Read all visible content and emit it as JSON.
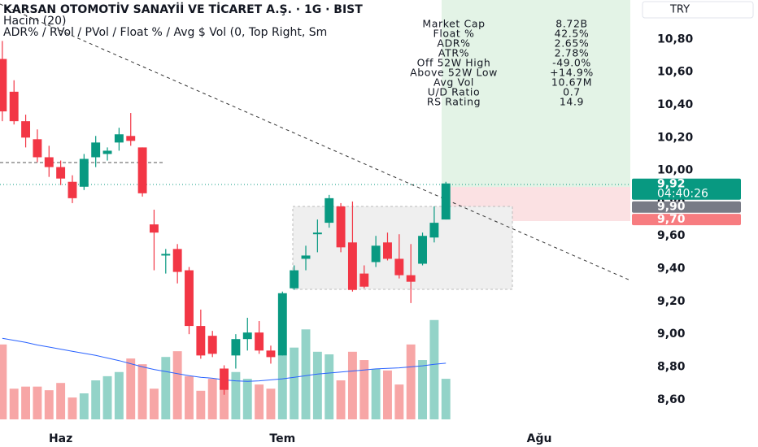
{
  "chart_data": {
    "type": "candlestick",
    "title": "KARSAN OTOMOTİV SANAYİİ VE TİCARET A.Ş. · 1G · BIST",
    "subtitle": "Hacim (20)",
    "indicator_label": "ADR% / RVol / PVol / Float % / Avg $ Vol (0, Top Right, Sm",
    "currency": "TRY",
    "up_color": "#089981",
    "down_color": "#f23645",
    "volume_up_color": "#93d3c8",
    "volume_down_color": "#f7a6a6",
    "volume_ma_color": "#2962ff",
    "x": [
      0,
      1,
      2,
      3,
      4,
      5,
      6,
      7,
      8,
      9,
      10,
      11,
      12,
      13,
      14,
      15,
      16,
      17,
      18,
      19,
      20,
      21,
      22,
      23,
      24,
      25,
      26,
      27,
      28,
      29,
      30,
      31,
      32,
      33,
      34,
      35,
      36,
      37,
      38
    ],
    "open": [
      10.68,
      10.48,
      10.3,
      10.19,
      10.08,
      10.02,
      9.93,
      9.9,
      10.08,
      10.1,
      10.17,
      10.21,
      10.14,
      9.67,
      9.48,
      9.52,
      9.39,
      9.05,
      8.99,
      8.79,
      8.87,
      8.97,
      9.01,
      8.9,
      8.87,
      9.28,
      9.46,
      9.61,
      9.68,
      9.78,
      9.56,
      9.37,
      9.44,
      9.56,
      9.46,
      9.36,
      9.43,
      9.59,
      9.7
    ],
    "high": [
      10.79,
      10.55,
      10.34,
      10.25,
      10.15,
      10.06,
      9.97,
      10.1,
      10.21,
      10.14,
      10.26,
      10.35,
      10.14,
      9.76,
      9.52,
      9.55,
      9.41,
      9.15,
      9.02,
      8.81,
      9.0,
      9.1,
      9.08,
      8.93,
      9.26,
      9.42,
      9.54,
      9.7,
      9.85,
      9.8,
      9.81,
      9.42,
      9.6,
      9.62,
      9.61,
      9.55,
      9.62,
      9.78,
      9.93
    ],
    "low": [
      10.3,
      10.28,
      10.14,
      10.05,
      9.96,
      9.91,
      9.8,
      9.88,
      10.02,
      10.06,
      10.12,
      10.15,
      9.84,
      9.39,
      9.37,
      9.31,
      9.0,
      8.85,
      8.86,
      8.63,
      8.79,
      8.9,
      8.88,
      8.82,
      8.87,
      9.27,
      9.39,
      9.5,
      9.65,
      9.5,
      9.26,
      9.28,
      9.41,
      9.45,
      9.34,
      9.19,
      9.42,
      9.56,
      9.7
    ],
    "close": [
      10.36,
      10.3,
      10.2,
      10.08,
      10.02,
      9.95,
      9.83,
      10.07,
      10.17,
      10.12,
      10.22,
      10.18,
      9.86,
      9.62,
      9.49,
      9.38,
      9.05,
      8.87,
      8.88,
      8.66,
      8.97,
      9.01,
      8.9,
      8.86,
      9.25,
      9.39,
      9.48,
      9.62,
      9.83,
      9.53,
      9.27,
      9.29,
      9.54,
      9.46,
      9.36,
      9.32,
      9.6,
      9.68,
      9.92
    ],
    "volume": [
      14.4,
      5.9,
      6.3,
      6.3,
      5.6,
      7.0,
      4.2,
      5.0,
      7.5,
      8.3,
      9.1,
      11.7,
      10.6,
      5.9,
      12.0,
      13.1,
      8.3,
      5.5,
      7.8,
      6.3,
      9.1,
      7.8,
      6.7,
      5.9,
      12.3,
      13.8,
      17.3,
      13.0,
      12.5,
      7.5,
      13.0,
      11.4,
      9.7,
      9.4,
      6.7,
      14.4,
      11.4,
      19.1,
      7.8
    ],
    "volume_ma": [
      15.6,
      15.2,
      14.8,
      14.3,
      13.9,
      13.5,
      13.1,
      12.7,
      12.3,
      11.8,
      11.3,
      10.7,
      10.1,
      9.6,
      9.2,
      8.8,
      8.4,
      8.1,
      7.9,
      7.6,
      7.4,
      7.3,
      7.4,
      7.6,
      7.8,
      8.1,
      8.4,
      8.7,
      8.9,
      9.1,
      9.3,
      9.5,
      9.7,
      9.8,
      9.9,
      10.1,
      10.3,
      10.6,
      10.8
    ],
    "xlim": [
      -0.2,
      53.8
    ],
    "xticks": [
      {
        "value": 5,
        "label": "Haz"
      },
      {
        "value": 24,
        "label": "Tem"
      },
      {
        "value": 46,
        "label": "Ağu"
      }
    ],
    "ylim": [
      8.46,
      11.04
    ],
    "yticks": [
      {
        "value": 8.6,
        "label": "8,60"
      },
      {
        "value": 8.8,
        "label": "8,80"
      },
      {
        "value": 9.0,
        "label": "9,00"
      },
      {
        "value": 9.2,
        "label": "9,20"
      },
      {
        "value": 9.4,
        "label": "9,40"
      },
      {
        "value": 9.6,
        "label": "9,60"
      },
      {
        "value": 9.8,
        "label": "9,80"
      },
      {
        "value": 10.0,
        "label": "10,00"
      },
      {
        "value": 10.2,
        "label": "10,20"
      },
      {
        "value": 10.4,
        "label": "10,40"
      },
      {
        "value": 10.6,
        "label": "10,60"
      },
      {
        "value": 10.8,
        "label": "10,80"
      }
    ],
    "price_tags": [
      {
        "value": 9.92,
        "label": "9,92",
        "color": "#089981"
      },
      {
        "value": 9.9,
        "label": "9,90",
        "color": "#787b86"
      },
      {
        "value": 9.7,
        "label": "9,70",
        "color": "#f77c80"
      }
    ],
    "countdown": "04:40:26",
    "stats_table": [
      [
        "Market Cap",
        "8.72B"
      ],
      [
        "Float %",
        "42.5%"
      ],
      [
        "ADR%",
        "2.65%"
      ],
      [
        "ATR%",
        "2.78%"
      ],
      [
        "Off 52W High",
        "-49.0%"
      ],
      [
        "Above 52W Low",
        "+14.9%"
      ],
      [
        "Avg Vol",
        "10.67M"
      ],
      [
        "U/D Ratio",
        "0.7"
      ],
      [
        "RS Rating",
        "14.9"
      ]
    ]
  }
}
